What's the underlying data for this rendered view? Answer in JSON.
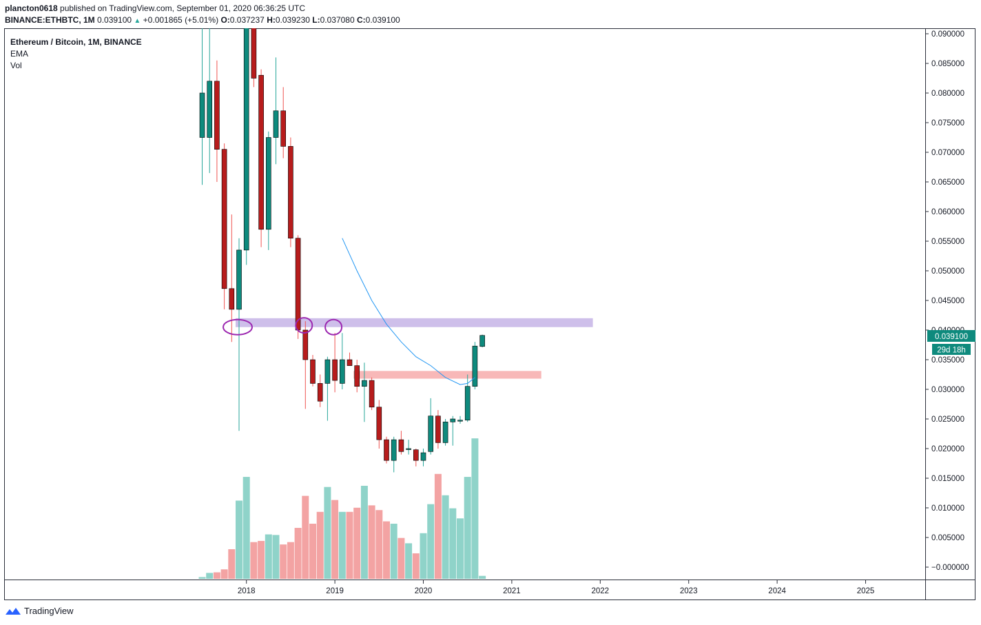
{
  "header": {
    "author": "plancton0618",
    "published_text": "published on TradingView.com, September 01, 2020 06:36:25 UTC",
    "symbol": "BINANCE:ETHBTC, 1M",
    "price": "0.039100",
    "change_arrow": "▲",
    "change": "+0.001865 (+5.01%)",
    "o_label": "O:",
    "o_value": "0.037237",
    "h_label": "H:",
    "h_value": "0.039230",
    "l_label": "L:",
    "l_value": "0.037080",
    "c_label": "C:",
    "c_value": "0.039100"
  },
  "legend": {
    "title": "Ethereum / Bitcoin, 1M, BINANCE",
    "indicator1": "EMA",
    "indicator2": "Vol"
  },
  "footer": {
    "brand": "TradingView",
    "logo_icon": "tradingview-logo-icon"
  },
  "colors": {
    "up": "#26a69a",
    "down": "#ef5350",
    "upBody": "#0e8a7d",
    "downBody": "#b71c1c",
    "volUp": "#8fd3c9",
    "volDown": "#f3a3a3",
    "ema": "#2196f3",
    "resistanceZone": "#c9b8e8",
    "supportZone": "#f7b0b0",
    "annotation": "#9c27b0"
  },
  "chart_data": {
    "type": "candlestick",
    "title": "Ethereum / Bitcoin, 1M, BINANCE",
    "x_ticks": [
      "2018",
      "2019",
      "2020",
      "2021",
      "2022",
      "2023",
      "2024",
      "2025"
    ],
    "y_ticks": [
      "0.090000",
      "0.085000",
      "0.080000",
      "0.075000",
      "0.070000",
      "0.065000",
      "0.060000",
      "0.055000",
      "0.050000",
      "0.045000",
      "0.040000",
      "0.035000",
      "0.030000",
      "0.025000",
      "0.020000",
      "0.015000",
      "0.010000",
      "0.005000",
      "−0.000000"
    ],
    "ylim": [
      0.0,
      0.09
    ],
    "last_price_label": "0.039100",
    "countdown_label": "29d 18h",
    "candles": [
      {
        "t": "2017-07",
        "o": 0.0725,
        "h": 0.094,
        "l": 0.0645,
        "c": 0.08
      },
      {
        "t": "2017-08",
        "o": 0.0725,
        "h": 0.095,
        "l": 0.0665,
        "c": 0.082
      },
      {
        "t": "2017-09",
        "o": 0.082,
        "h": 0.0855,
        "l": 0.065,
        "c": 0.0705
      },
      {
        "t": "2017-10",
        "o": 0.0705,
        "h": 0.0715,
        "l": 0.0435,
        "c": 0.047
      },
      {
        "t": "2017-11",
        "o": 0.047,
        "h": 0.0595,
        "l": 0.038,
        "c": 0.0435
      },
      {
        "t": "2017-12",
        "o": 0.0435,
        "h": 0.0555,
        "l": 0.023,
        "c": 0.0535
      },
      {
        "t": "2018-01",
        "o": 0.0535,
        "h": 0.095,
        "l": 0.051,
        "c": 0.095
      },
      {
        "t": "2018-02",
        "o": 0.095,
        "h": 0.096,
        "l": 0.081,
        "c": 0.0825
      },
      {
        "t": "2018-03",
        "o": 0.083,
        "h": 0.084,
        "l": 0.054,
        "c": 0.057
      },
      {
        "t": "2018-04",
        "o": 0.057,
        "h": 0.0735,
        "l": 0.0535,
        "c": 0.0725
      },
      {
        "t": "2018-05",
        "o": 0.0725,
        "h": 0.086,
        "l": 0.068,
        "c": 0.077
      },
      {
        "t": "2018-06",
        "o": 0.077,
        "h": 0.081,
        "l": 0.069,
        "c": 0.071
      },
      {
        "t": "2018-07",
        "o": 0.071,
        "h": 0.0725,
        "l": 0.054,
        "c": 0.0555
      },
      {
        "t": "2018-08",
        "o": 0.0555,
        "h": 0.056,
        "l": 0.0385,
        "c": 0.04
      },
      {
        "t": "2018-09",
        "o": 0.04,
        "h": 0.0415,
        "l": 0.0267,
        "c": 0.035
      },
      {
        "t": "2018-10",
        "o": 0.035,
        "h": 0.0358,
        "l": 0.0305,
        "c": 0.031
      },
      {
        "t": "2018-11",
        "o": 0.031,
        "h": 0.0325,
        "l": 0.027,
        "c": 0.028
      },
      {
        "t": "2018-12",
        "o": 0.031,
        "h": 0.0355,
        "l": 0.0247,
        "c": 0.035
      },
      {
        "t": "2019-01",
        "o": 0.035,
        "h": 0.0395,
        "l": 0.0295,
        "c": 0.0315
      },
      {
        "t": "2019-02",
        "o": 0.031,
        "h": 0.0395,
        "l": 0.03,
        "c": 0.035
      },
      {
        "t": "2019-03",
        "o": 0.035,
        "h": 0.0362,
        "l": 0.034,
        "c": 0.034
      },
      {
        "t": "2019-04",
        "o": 0.034,
        "h": 0.035,
        "l": 0.0295,
        "c": 0.0305
      },
      {
        "t": "2019-05",
        "o": 0.0305,
        "h": 0.0345,
        "l": 0.0245,
        "c": 0.0315
      },
      {
        "t": "2019-06",
        "o": 0.0315,
        "h": 0.032,
        "l": 0.0265,
        "c": 0.027
      },
      {
        "t": "2019-07",
        "o": 0.027,
        "h": 0.0282,
        "l": 0.02,
        "c": 0.0215
      },
      {
        "t": "2019-08",
        "o": 0.0215,
        "h": 0.022,
        "l": 0.0175,
        "c": 0.018
      },
      {
        "t": "2019-09",
        "o": 0.018,
        "h": 0.022,
        "l": 0.016,
        "c": 0.0215
      },
      {
        "t": "2019-10",
        "o": 0.0215,
        "h": 0.023,
        "l": 0.019,
        "c": 0.0195
      },
      {
        "t": "2019-11",
        "o": 0.02,
        "h": 0.0215,
        "l": 0.019,
        "c": 0.02
      },
      {
        "t": "2019-12",
        "o": 0.0198,
        "h": 0.02,
        "l": 0.017,
        "c": 0.018
      },
      {
        "t": "2020-01",
        "o": 0.018,
        "h": 0.02,
        "l": 0.017,
        "c": 0.0193
      },
      {
        "t": "2020-02",
        "o": 0.0195,
        "h": 0.0285,
        "l": 0.019,
        "c": 0.0255
      },
      {
        "t": "2020-03",
        "o": 0.0255,
        "h": 0.0265,
        "l": 0.02,
        "c": 0.021
      },
      {
        "t": "2020-04",
        "o": 0.021,
        "h": 0.025,
        "l": 0.0205,
        "c": 0.0245
      },
      {
        "t": "2020-05",
        "o": 0.0245,
        "h": 0.0255,
        "l": 0.0205,
        "c": 0.025
      },
      {
        "t": "2020-06",
        "o": 0.0248,
        "h": 0.0255,
        "l": 0.0242,
        "c": 0.0248
      },
      {
        "t": "2020-07",
        "o": 0.0248,
        "h": 0.0325,
        "l": 0.0245,
        "c": 0.0305
      },
      {
        "t": "2020-08",
        "o": 0.0305,
        "h": 0.038,
        "l": 0.03,
        "c": 0.0373
      },
      {
        "t": "2020-09",
        "o": 0.037237,
        "h": 0.03923,
        "l": 0.03708,
        "c": 0.0391
      }
    ],
    "volume_series": {
      "name": "Vol",
      "values": [
        0.3,
        1.0,
        1.1,
        1.6,
        5.0,
        13.2,
        17.2,
        6.2,
        6.4,
        7.5,
        7.4,
        5.8,
        6.2,
        8.6,
        14.0,
        9.3,
        11.3,
        15.5,
        13.3,
        11.3,
        11.3,
        12.0,
        15.7,
        12.4,
        11.6,
        9.7,
        9.3,
        6.9,
        6.0,
        4.3,
        7.7,
        12.6,
        17.7,
        14.1,
        11.9,
        10.2,
        17.2,
        23.7,
        0.5
      ]
    },
    "ema_series": {
      "name": "EMA",
      "points": [
        [
          "2019-02",
          0.0555
        ],
        [
          "2019-04",
          0.05
        ],
        [
          "2019-06",
          0.045
        ],
        [
          "2019-08",
          0.041
        ],
        [
          "2019-10",
          0.038
        ],
        [
          "2019-12",
          0.0355
        ],
        [
          "2020-02",
          0.034
        ],
        [
          "2020-04",
          0.032
        ],
        [
          "2020-06",
          0.0308
        ],
        [
          "2020-07",
          0.031
        ],
        [
          "2020-08",
          0.032
        ]
      ]
    },
    "zones": [
      {
        "name": "resistance",
        "from": "2017-12",
        "to": "2021-12",
        "low": 0.0405,
        "high": 0.042
      },
      {
        "name": "support",
        "from": "2019-04",
        "to": "2021-05",
        "low": 0.0318,
        "high": 0.0331
      }
    ],
    "annotations": [
      {
        "type": "ellipse",
        "t": "2017-12",
        "y": 0.0405
      },
      {
        "type": "ellipse",
        "t": "2018-09",
        "y": 0.0408
      },
      {
        "type": "ellipse",
        "t": "2019-01",
        "y": 0.0405
      }
    ],
    "grid": false,
    "legend_position": "top-left"
  }
}
